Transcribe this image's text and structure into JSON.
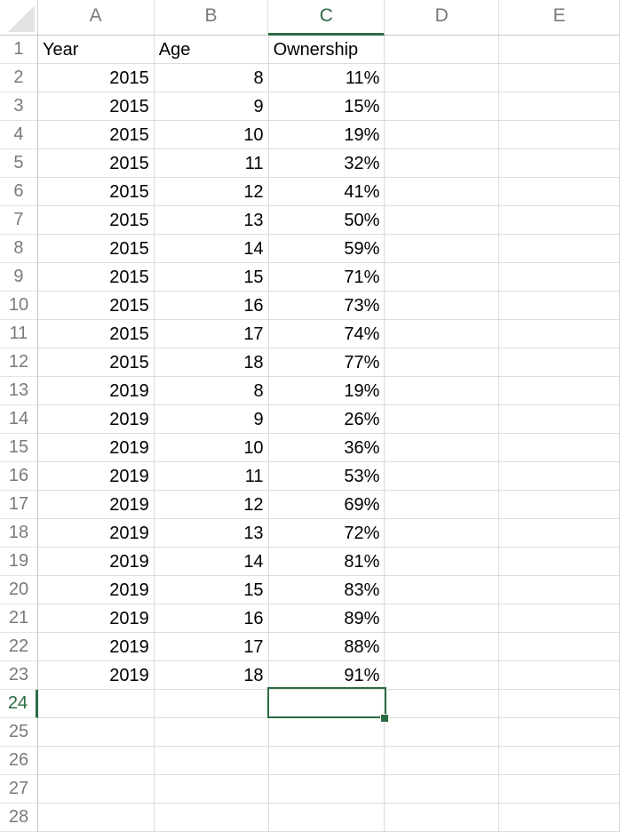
{
  "columns": [
    "A",
    "B",
    "C",
    "D",
    "E"
  ],
  "active_column": "C",
  "active_row": 24,
  "selected_cell": "C24",
  "accent_color": "#2b6b41",
  "rows": [
    {
      "n": "1",
      "a": "Year",
      "b": "Age",
      "c": "Ownership",
      "d": "",
      "e": ""
    },
    {
      "n": "2",
      "a": "2015",
      "b": "8",
      "c": "11%",
      "d": "",
      "e": ""
    },
    {
      "n": "3",
      "a": "2015",
      "b": "9",
      "c": "15%",
      "d": "",
      "e": ""
    },
    {
      "n": "4",
      "a": "2015",
      "b": "10",
      "c": "19%",
      "d": "",
      "e": ""
    },
    {
      "n": "5",
      "a": "2015",
      "b": "11",
      "c": "32%",
      "d": "",
      "e": ""
    },
    {
      "n": "6",
      "a": "2015",
      "b": "12",
      "c": "41%",
      "d": "",
      "e": ""
    },
    {
      "n": "7",
      "a": "2015",
      "b": "13",
      "c": "50%",
      "d": "",
      "e": ""
    },
    {
      "n": "8",
      "a": "2015",
      "b": "14",
      "c": "59%",
      "d": "",
      "e": ""
    },
    {
      "n": "9",
      "a": "2015",
      "b": "15",
      "c": "71%",
      "d": "",
      "e": ""
    },
    {
      "n": "10",
      "a": "2015",
      "b": "16",
      "c": "73%",
      "d": "",
      "e": ""
    },
    {
      "n": "11",
      "a": "2015",
      "b": "17",
      "c": "74%",
      "d": "",
      "e": ""
    },
    {
      "n": "12",
      "a": "2015",
      "b": "18",
      "c": "77%",
      "d": "",
      "e": ""
    },
    {
      "n": "13",
      "a": "2019",
      "b": "8",
      "c": "19%",
      "d": "",
      "e": ""
    },
    {
      "n": "14",
      "a": "2019",
      "b": "9",
      "c": "26%",
      "d": "",
      "e": ""
    },
    {
      "n": "15",
      "a": "2019",
      "b": "10",
      "c": "36%",
      "d": "",
      "e": ""
    },
    {
      "n": "16",
      "a": "2019",
      "b": "11",
      "c": "53%",
      "d": "",
      "e": ""
    },
    {
      "n": "17",
      "a": "2019",
      "b": "12",
      "c": "69%",
      "d": "",
      "e": ""
    },
    {
      "n": "18",
      "a": "2019",
      "b": "13",
      "c": "72%",
      "d": "",
      "e": ""
    },
    {
      "n": "19",
      "a": "2019",
      "b": "14",
      "c": "81%",
      "d": "",
      "e": ""
    },
    {
      "n": "20",
      "a": "2019",
      "b": "15",
      "c": "83%",
      "d": "",
      "e": ""
    },
    {
      "n": "21",
      "a": "2019",
      "b": "16",
      "c": "89%",
      "d": "",
      "e": ""
    },
    {
      "n": "22",
      "a": "2019",
      "b": "17",
      "c": "88%",
      "d": "",
      "e": ""
    },
    {
      "n": "23",
      "a": "2019",
      "b": "18",
      "c": "91%",
      "d": "",
      "e": ""
    },
    {
      "n": "24",
      "a": "",
      "b": "",
      "c": "",
      "d": "",
      "e": ""
    },
    {
      "n": "25",
      "a": "",
      "b": "",
      "c": "",
      "d": "",
      "e": ""
    },
    {
      "n": "26",
      "a": "",
      "b": "",
      "c": "",
      "d": "",
      "e": ""
    },
    {
      "n": "27",
      "a": "",
      "b": "",
      "c": "",
      "d": "",
      "e": ""
    },
    {
      "n": "28",
      "a": "",
      "b": "",
      "c": "",
      "d": "",
      "e": ""
    }
  ]
}
